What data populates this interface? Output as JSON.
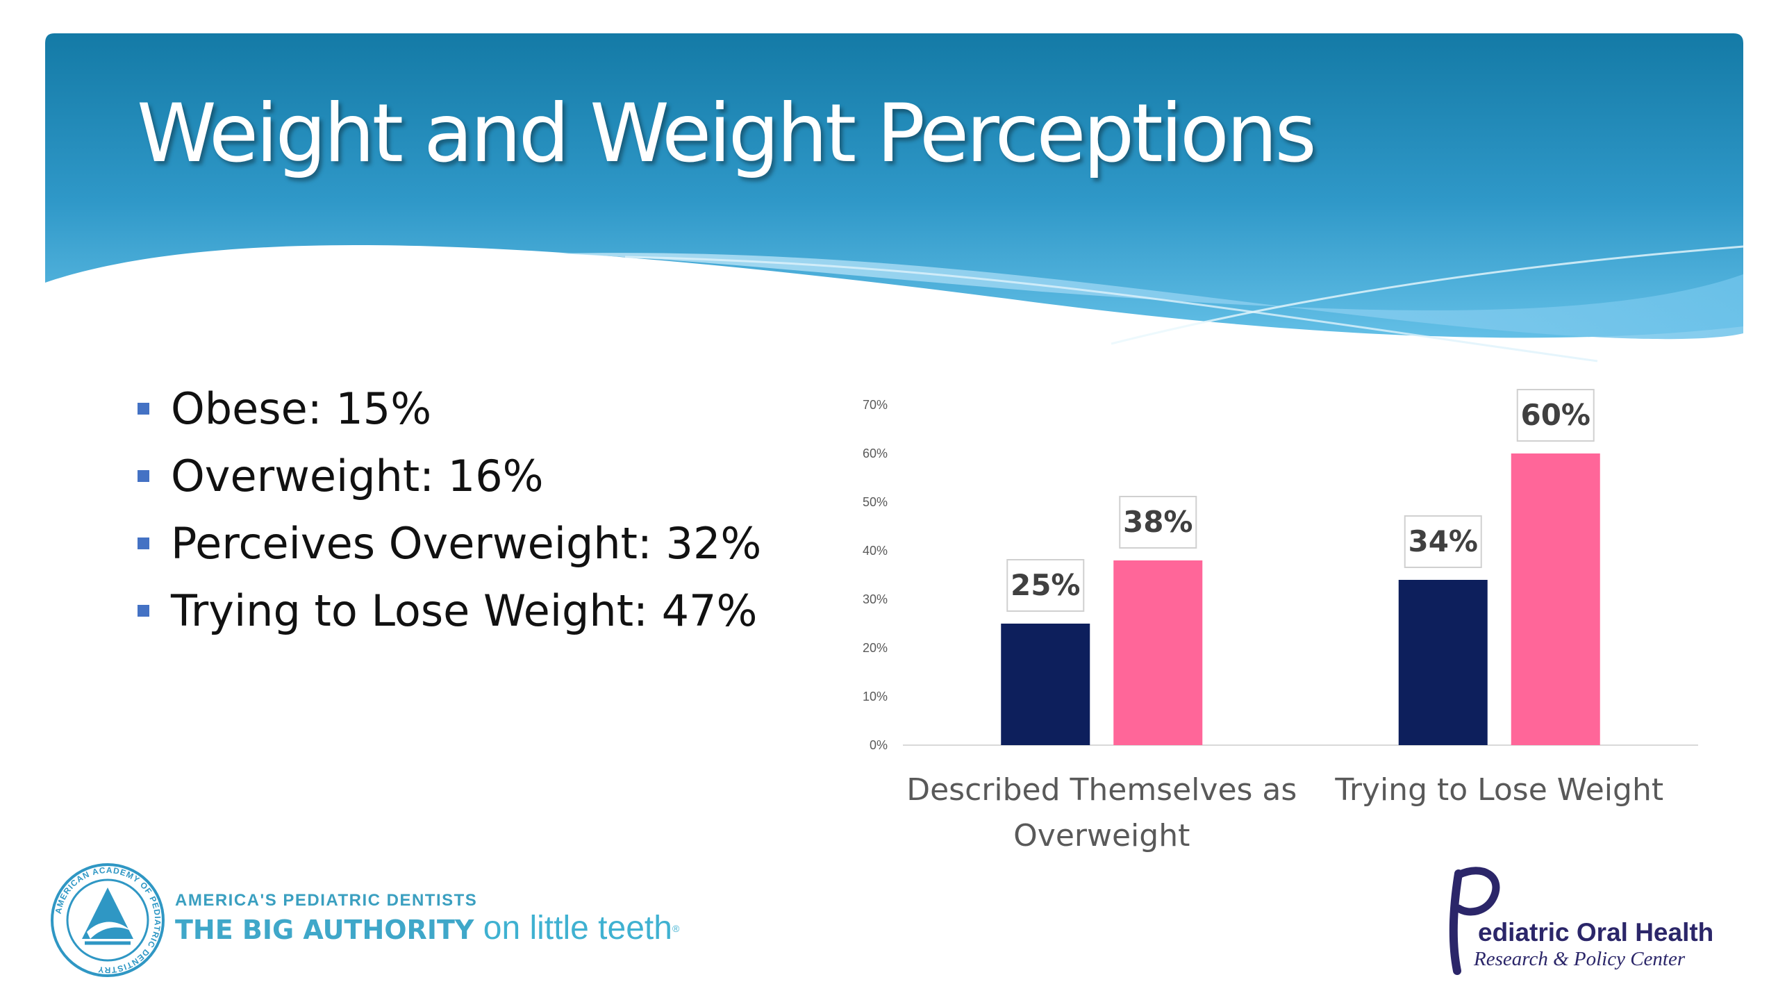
{
  "slide": {
    "title": "Weight and Weight Perceptions"
  },
  "bullets": [
    "Obese: 15%",
    "Overweight: 16%",
    "Perceives Overweight: 32%",
    "Trying to Lose Weight: 47%"
  ],
  "colors": {
    "header_dark": "#1a7aa8",
    "header_light": "#4fb0dc",
    "series_1": "#0d1f5c",
    "series_2": "#ff6699",
    "bullet": "#4472c4"
  },
  "chart_data": {
    "type": "bar",
    "categories": [
      "Described Themselves as Overweight",
      "Trying to Lose Weight"
    ],
    "category_label_lines": [
      [
        "Described Themselves as",
        "Overweight"
      ],
      [
        "Trying to Lose Weight"
      ]
    ],
    "series": [
      {
        "values": [
          25,
          34
        ],
        "data_labels": [
          "25%",
          "34%"
        ],
        "color": "#0d1f5c"
      },
      {
        "values": [
          38,
          60
        ],
        "data_labels": [
          "38%",
          "60%"
        ],
        "color": "#ff6699"
      }
    ],
    "y_ticks": [
      "0%",
      "10%",
      "20%",
      "30%",
      "40%",
      "50%",
      "60%",
      "70%"
    ],
    "ylim": [
      0,
      70
    ],
    "grid": false,
    "legend": "none",
    "title": "",
    "xlabel": "",
    "ylabel": ""
  },
  "logos": {
    "aapd": {
      "tagline_top": "AMERICA'S PEDIATRIC DENTISTS",
      "tagline_bold": "THE BIG AUTHORITY",
      "tagline_light": "on little teeth",
      "trademark": "®",
      "seal_text": "AMERICAN ACADEMY OF PEDIATRIC DENTISTRY"
    },
    "pohrpc": {
      "name": "ediatric Oral Health",
      "subtitle": "Research & Policy Center"
    }
  }
}
